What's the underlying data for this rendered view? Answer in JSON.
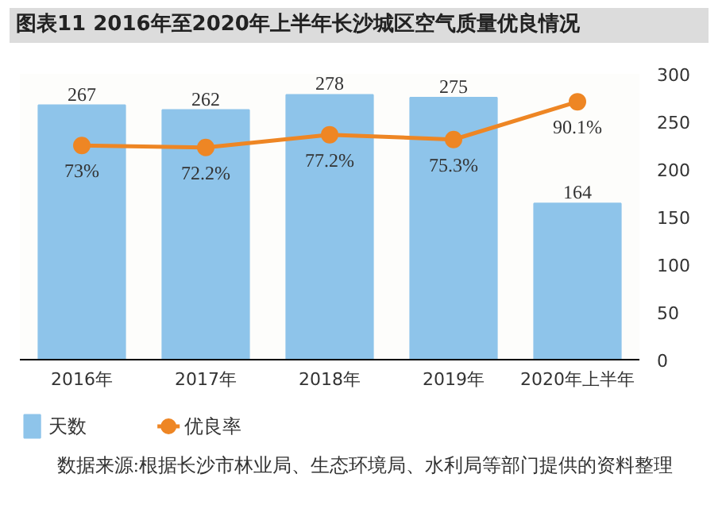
{
  "chart_data": {
    "type": "bar",
    "title": "图表11  2016年至2020年上半年长沙城区空气质量优良情况",
    "categories": [
      "2016年",
      "2017年",
      "2018年",
      "2019年",
      "2020年上半年"
    ],
    "series": [
      {
        "name": "天数",
        "color": "#8ec4ea",
        "values": [
          267,
          262,
          278,
          275,
          164
        ]
      },
      {
        "name": "优良率",
        "type": "line",
        "axis": "y2",
        "color": "#ee8624",
        "values": [
          73,
          72.2,
          77.2,
          75.3,
          90.1
        ],
        "value_labels": [
          "73%",
          "72.2%",
          "77.2%",
          "75.3%",
          "90.1%"
        ]
      }
    ],
    "ylim": [
      0,
      300
    ],
    "yticks": [
      0,
      50,
      100,
      150,
      200,
      250,
      300
    ],
    "data_labels": true,
    "marker": "circle",
    "legend": "bottom",
    "grid": false,
    "annotations": [
      "数据来源:根据长沙市林业局、生态环境局、水利局等部门提供的资料整理"
    ]
  }
}
